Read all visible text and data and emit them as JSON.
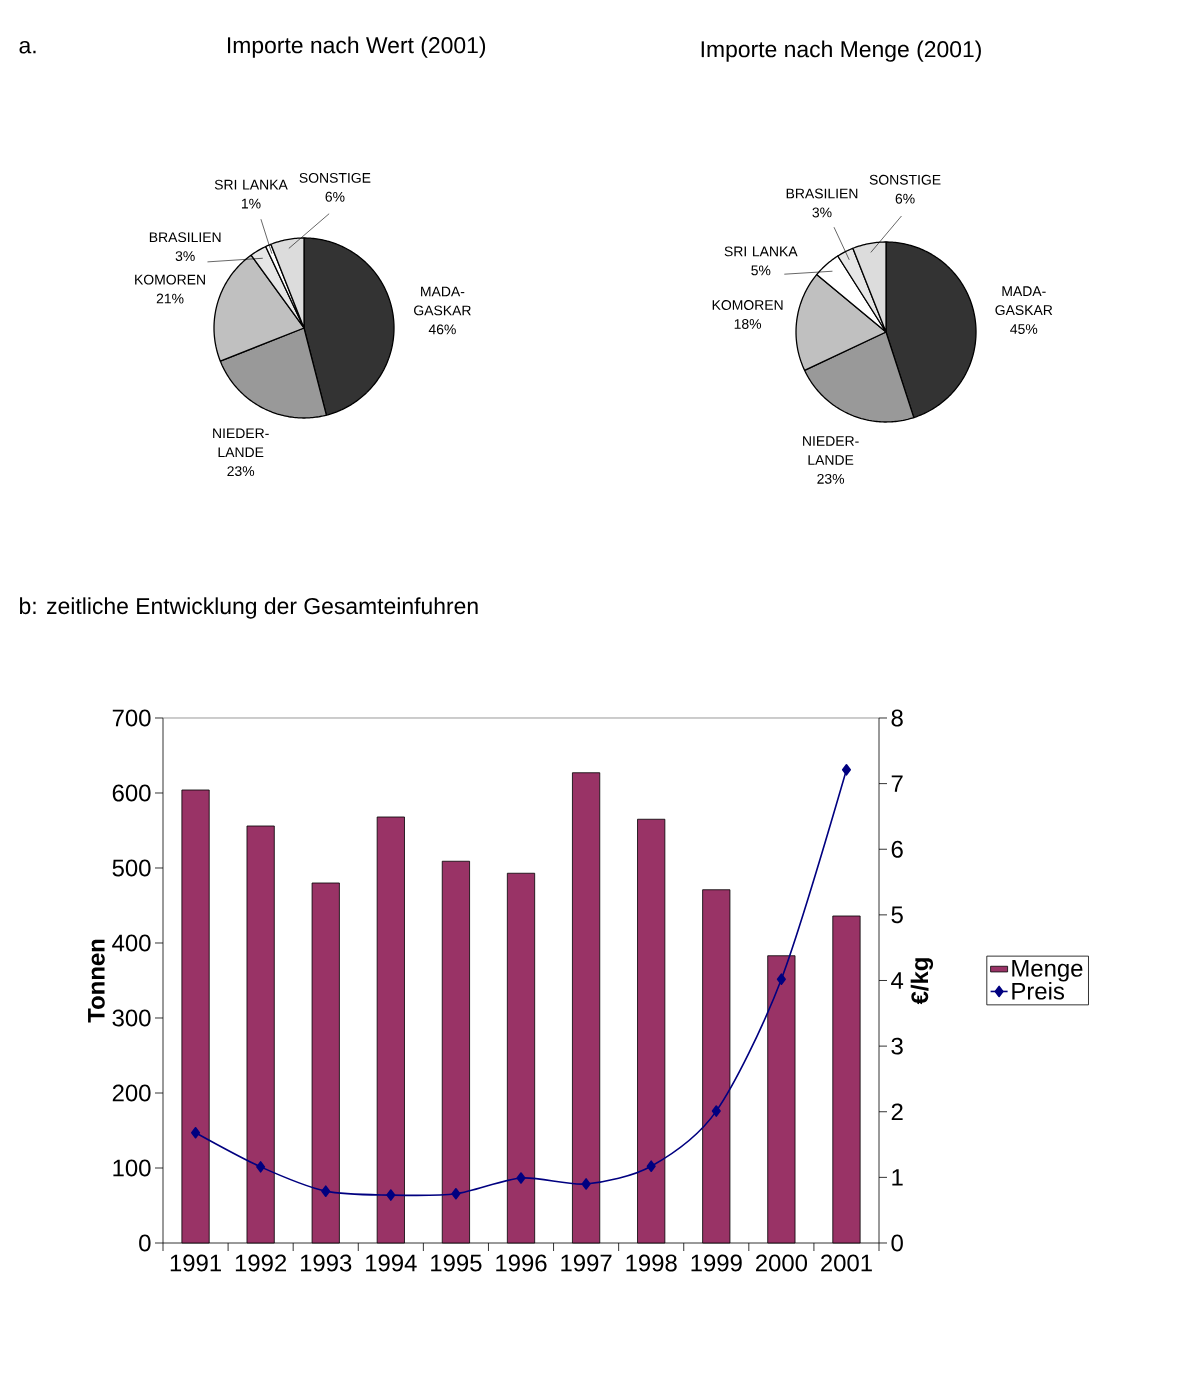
{
  "chart_data": [
    {
      "type": "pie",
      "title": "Importe nach Wert (2001)",
      "annotations": [
        "a."
      ],
      "categories": [
        "MADA-GASKAR",
        "NIEDER-LANDE",
        "KOMOREN",
        "BRASILIEN",
        "SRI LANKA",
        "SONSTIGE"
      ],
      "values": [
        46,
        23,
        21,
        3,
        1,
        6
      ],
      "value_labels": [
        "46%",
        "23%",
        "21%",
        "3%",
        "1%",
        "6%"
      ],
      "colors": [
        "#333333",
        "#999999",
        "#c0c0c0",
        "#e6e6e6",
        "#ffffff",
        "#dcdcdc"
      ]
    },
    {
      "type": "pie",
      "title": "Importe nach Menge (2001)",
      "categories": [
        "MADA-GASKAR",
        "NIEDER-LANDE",
        "KOMOREN",
        "SRI LANKA",
        "BRASILIEN",
        "SONSTIGE"
      ],
      "values": [
        45,
        23,
        18,
        5,
        3,
        6
      ],
      "value_labels": [
        "45%",
        "23%",
        "18%",
        "5%",
        "3%",
        "6%"
      ],
      "colors": [
        "#333333",
        "#999999",
        "#c0c0c0",
        "#ffffff",
        "#e6e6e6",
        "#dcdcdc"
      ]
    },
    {
      "type": "bar",
      "title": "b: zeitliche Entwicklung der Gesamteinfuhren",
      "categories": [
        "1991",
        "1992",
        "1993",
        "1994",
        "1995",
        "1996",
        "1997",
        "1998",
        "1999",
        "2000",
        "2001"
      ],
      "series": [
        {
          "name": "Menge",
          "type": "bar",
          "color": "#993366",
          "values": [
            604,
            556,
            480,
            568,
            509,
            493,
            627,
            565,
            471,
            383,
            436
          ]
        },
        {
          "name": "Preis",
          "type": "line",
          "axis": "y2",
          "color": "#000080",
          "values": [
            1.68,
            1.16,
            0.79,
            0.73,
            0.75,
            0.99,
            0.9,
            1.17,
            2.01,
            4.02,
            7.21
          ]
        }
      ],
      "ylabel": "Tonnen",
      "y2label": "€/kg",
      "ylim": [
        0,
        700
      ],
      "yticks": [
        0,
        100,
        200,
        300,
        400,
        500,
        600,
        700
      ],
      "y2lim": [
        0,
        8
      ],
      "y2ticks": [
        0,
        1,
        2,
        3,
        4,
        5,
        6,
        7,
        8
      ],
      "legend": "right",
      "marker": "diamond"
    }
  ]
}
